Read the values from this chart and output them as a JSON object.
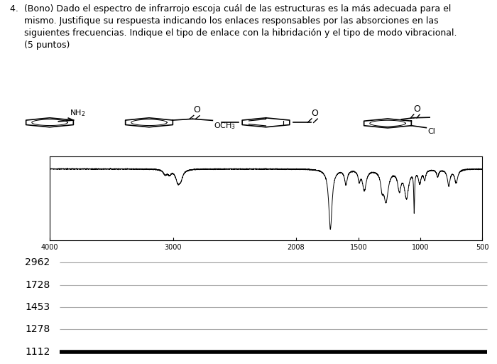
{
  "frequencies": [
    2962,
    1728,
    1453,
    1278,
    1112
  ],
  "bg_color": "#ffffff",
  "text_color": "#000000",
  "gray_line_color": "#aaaaaa",
  "black_bar_color": "#000000",
  "font_size_title": 9,
  "font_size_freq": 10,
  "font_size_axis": 7,
  "xaxis_ticks": [
    4000,
    3000,
    2008,
    1500,
    1000,
    500
  ],
  "xaxis_labels": [
    "4000",
    "3000",
    "2008",
    "1500",
    "1000",
    "500"
  ]
}
